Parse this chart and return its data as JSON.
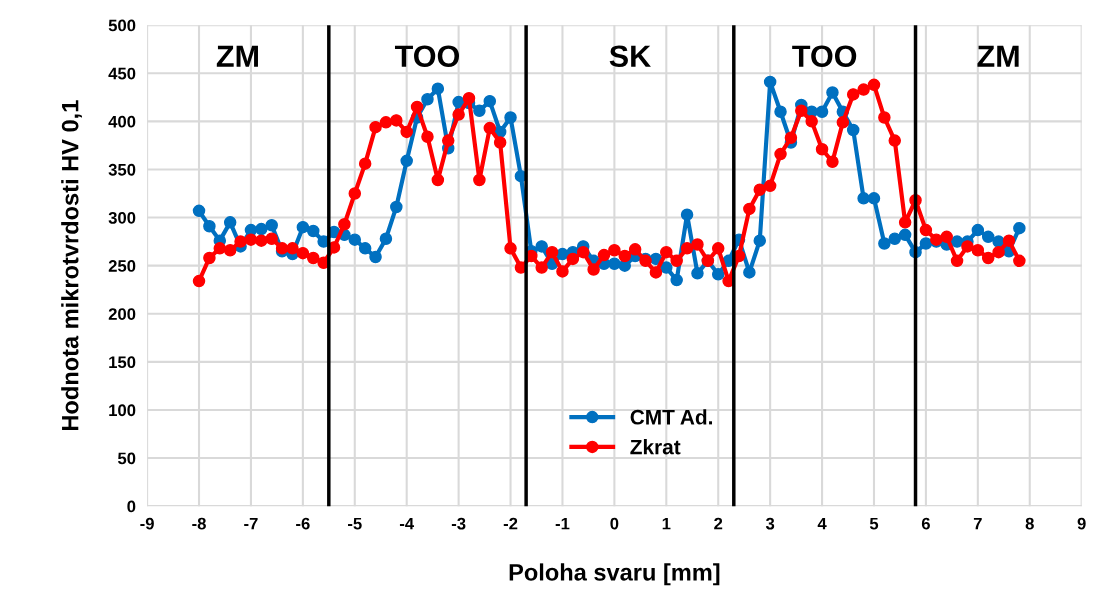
{
  "chart_data": {
    "type": "line",
    "xlabel": "Poloha svaru [mm]",
    "ylabel": "Hodnota mikrotvrdosti HV 0,1",
    "x": [
      -8,
      -7.8,
      -7.6,
      -7.4,
      -7.2,
      -7,
      -6.8,
      -6.6,
      -6.4,
      -6.2,
      -6,
      -5.8,
      -5.6,
      -5.4,
      -5.2,
      -5,
      -4.8,
      -4.6,
      -4.4,
      -4.2,
      -4,
      -3.8,
      -3.6,
      -3.4,
      -3.2,
      -3,
      -2.8,
      -2.6,
      -2.4,
      -2.2,
      -2,
      -1.8,
      -1.6,
      -1.4,
      -1.2,
      -1,
      -0.8,
      -0.6,
      -0.4,
      -0.2,
      0,
      0.2,
      0.4,
      0.6,
      0.8,
      1,
      1.2,
      1.4,
      1.6,
      1.8,
      2,
      2.2,
      2.4,
      2.6,
      2.8,
      3,
      3.2,
      3.4,
      3.6,
      3.8,
      4,
      4.2,
      4.4,
      4.6,
      4.8,
      5,
      5.2,
      5.4,
      5.6,
      5.8,
      6,
      6.2,
      6.4,
      6.6,
      6.8,
      7,
      7.2,
      7.4,
      7.6,
      7.8
    ],
    "series": [
      {
        "name": "CMT Ad.",
        "color": "#0070c0",
        "values": [
          307,
          291,
          276,
          295,
          270,
          287,
          288,
          292,
          265,
          262,
          290,
          286,
          275,
          285,
          282,
          277,
          268,
          259,
          278,
          311,
          359,
          404,
          423,
          434,
          372,
          420,
          419,
          411,
          421,
          389,
          404,
          343,
          265,
          270,
          252,
          262,
          264,
          270,
          255,
          252,
          252,
          250,
          260,
          257,
          257,
          248,
          235,
          303,
          242,
          255,
          241,
          255,
          277,
          243,
          276,
          441,
          410,
          378,
          417,
          410,
          410,
          430,
          410,
          391,
          320,
          320,
          273,
          278,
          282,
          264,
          273,
          275,
          272,
          275,
          275,
          287,
          280,
          275,
          265,
          289
        ]
      },
      {
        "name": "Zkrat",
        "color": "#ff0000",
        "values": [
          234,
          258,
          268,
          266,
          275,
          277,
          276,
          278,
          268,
          268,
          263,
          258,
          253,
          269,
          293,
          325,
          356,
          394,
          399,
          401,
          389,
          415,
          384,
          339,
          380,
          407,
          424,
          339,
          393,
          378,
          268,
          248,
          260,
          248,
          264,
          244,
          257,
          264,
          246,
          261,
          266,
          260,
          267,
          255,
          243,
          264,
          255,
          268,
          272,
          255,
          268,
          234,
          260,
          309,
          329,
          333,
          366,
          383,
          411,
          400,
          371,
          358,
          399,
          428,
          433,
          438,
          404,
          380,
          295,
          318,
          287,
          277,
          280,
          255,
          270,
          266,
          258,
          264,
          276,
          255
        ]
      }
    ],
    "xlim": [
      -9,
      9
    ],
    "xticks": [
      -9,
      -8,
      -7,
      -6,
      -5,
      -4,
      -3,
      -2,
      -1,
      0,
      1,
      2,
      3,
      4,
      5,
      6,
      7,
      8,
      9
    ],
    "ylim": [
      0,
      500
    ],
    "yticks": [
      0,
      50,
      100,
      150,
      200,
      250,
      300,
      350,
      400,
      450,
      500
    ],
    "ref_lines": [
      {
        "axis": "x",
        "value": -5.5,
        "color": "#000000"
      },
      {
        "axis": "x",
        "value": -1.7,
        "color": "#000000"
      },
      {
        "axis": "x",
        "value": 2.3,
        "color": "#000000"
      },
      {
        "axis": "x",
        "value": 5.8,
        "color": "#000000"
      }
    ],
    "annotations": [
      "ZM",
      "TOO",
      "SK",
      "TOO",
      "ZM"
    ],
    "grid": true,
    "legend": "bottom",
    "marker": "circle",
    "line_style": "solid"
  }
}
